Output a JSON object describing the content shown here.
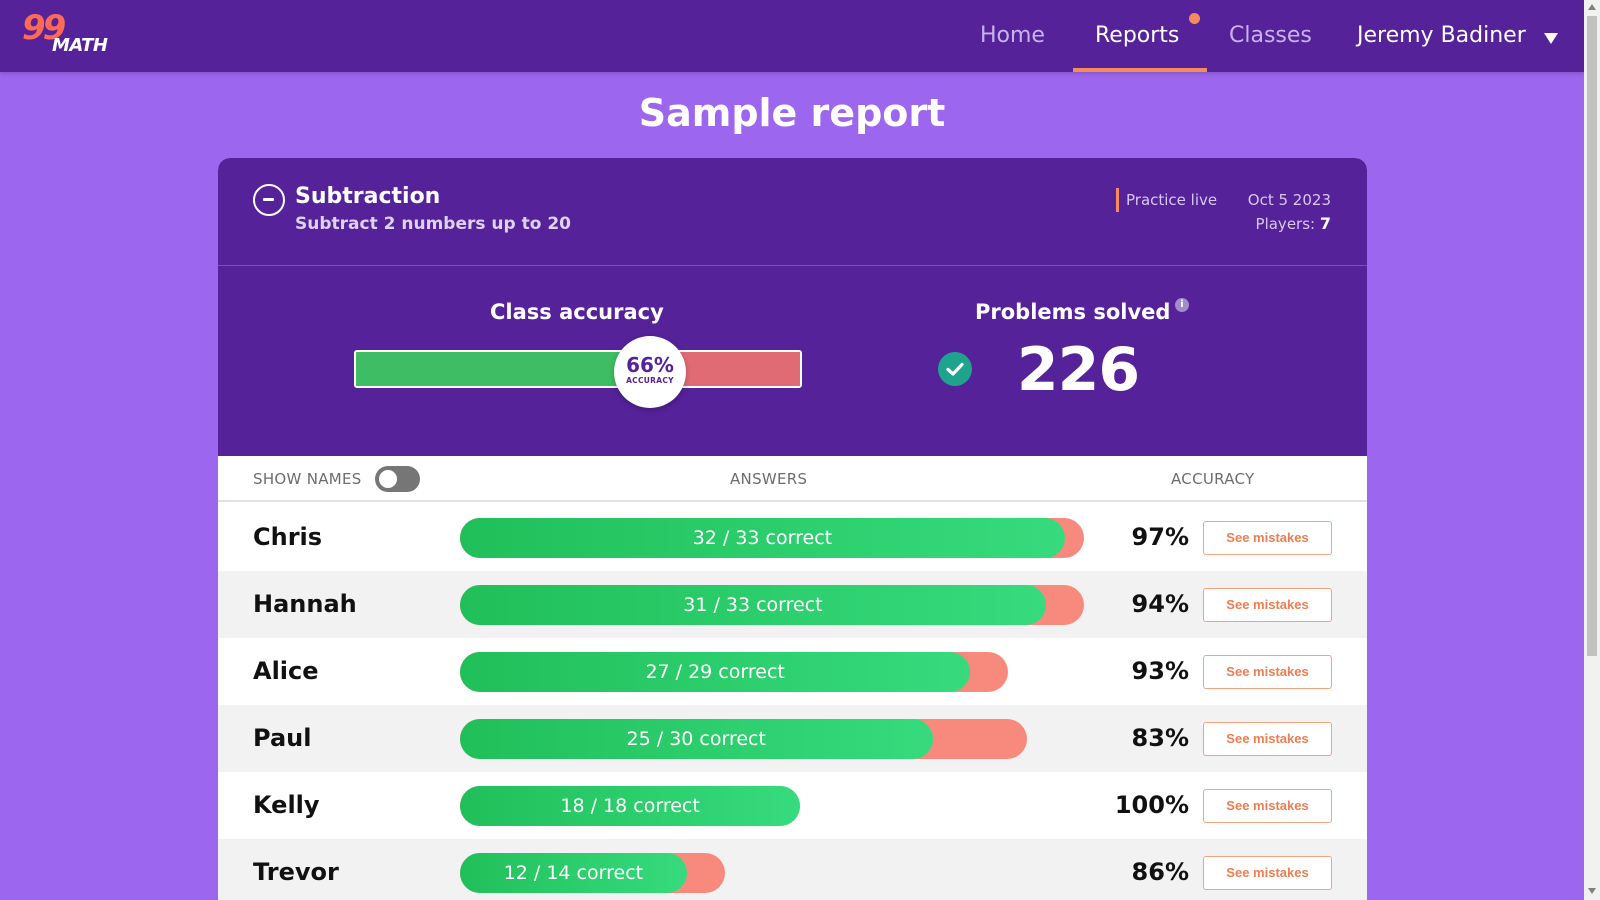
{
  "nav": {
    "logo_number": "99",
    "logo_text": "MATH",
    "items": [
      "Home",
      "Reports",
      "Classes"
    ],
    "active": "Reports",
    "user": "Jeremy Badiner"
  },
  "page_title": "Sample report",
  "report": {
    "topic": "Subtraction",
    "subtitle": "Subtract 2 numbers up to 20",
    "mode": "Practice live",
    "date": "Oct 5 2023",
    "players_label": "Players:",
    "players": "7"
  },
  "stats": {
    "accuracy_label": "Class accuracy",
    "accuracy_value": "66%",
    "accuracy_fraction": 0.66,
    "accuracy_caption": "ACCURACY",
    "problems_label": "Problems solved",
    "problems_value": "226",
    "info_glyph": "i"
  },
  "table": {
    "show_names": "SHOW NAMES",
    "answers": "ANSWERS",
    "accuracy": "ACCURACY",
    "button_label": "See mistakes",
    "rows": [
      {
        "name": "Chris",
        "correct": 32,
        "total": 33,
        "label": "32 / 33 correct",
        "accuracy": "97%"
      },
      {
        "name": "Hannah",
        "correct": 31,
        "total": 33,
        "label": "31 / 33 correct",
        "accuracy": "94%"
      },
      {
        "name": "Alice",
        "correct": 27,
        "total": 29,
        "label": "27 / 29 correct",
        "accuracy": "93%"
      },
      {
        "name": "Paul",
        "correct": 25,
        "total": 30,
        "label": "25 / 30 correct",
        "accuracy": "83%"
      },
      {
        "name": "Kelly",
        "correct": 18,
        "total": 18,
        "label": "18 / 18 correct",
        "accuracy": "100%"
      },
      {
        "name": "Trevor",
        "correct": 12,
        "total": 14,
        "label": "12 / 14 correct",
        "accuracy": "86%"
      }
    ]
  },
  "colors": {
    "nav_bg": "#55229a",
    "page_bg": "#9c66ee",
    "accent": "#f58b5d",
    "correct": "#21bf5a",
    "incorrect": "#f78a7c"
  }
}
